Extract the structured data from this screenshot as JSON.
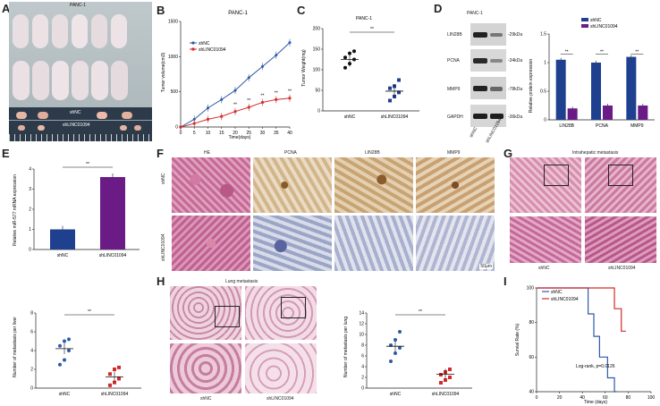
{
  "letters": {
    "A": "A",
    "B": "B",
    "C": "C",
    "D": "D",
    "E": "E",
    "F": "F",
    "G": "G",
    "H": "H",
    "I": "I"
  },
  "panelA": {
    "title": "PANC-1",
    "label_top": "shNC",
    "label_bottom": "shLINC01094"
  },
  "panelB": {
    "title": "PANC-1",
    "legend": [
      "shNC",
      "shLINC01094"
    ],
    "xlabel": "Time(days)",
    "ylabel": "Tumor volume(cm3)",
    "stars": "**"
  },
  "panelC": {
    "title": "PANC-1",
    "ylabel": "Tumor Weight(mg)",
    "groups": [
      "shNC",
      "shLINC01094"
    ],
    "stars": "**"
  },
  "panelD": {
    "title": "PANC-1",
    "rows": [
      "LIN28B",
      "PCNA",
      "MMP9",
      "GAPDH"
    ],
    "kda": [
      "-29kDa",
      "-34kDa",
      "-78kDa",
      "-36kDa"
    ],
    "lanes": [
      "shNC",
      "shLINC01094"
    ],
    "legend": [
      "shNC",
      "shLINC01094"
    ],
    "ylabel": "Relative protein expression",
    "stars": "**"
  },
  "panelE": {
    "ylabel": "Relative miR-577 mRNA expression",
    "groups": [
      "shNC",
      "shLINC01094"
    ],
    "stars": "**"
  },
  "panelEb": {
    "ylabel": "Number of metastasis per liver",
    "groups": [
      "shNC",
      "shLINC01094"
    ],
    "stars": "**"
  },
  "panelF": {
    "cols": [
      "HE",
      "PCNA",
      "LIN28B",
      "MMP9"
    ],
    "rows": [
      "shNC",
      "shLINC01094"
    ],
    "scale": "50μm"
  },
  "panelG": {
    "title": "Intrahepatic metastasis",
    "labels": [
      "shNC",
      "shLINC01094"
    ]
  },
  "panelH": {
    "title": "Lung metastasis",
    "labels": [
      "shNC",
      "shLINC01094"
    ],
    "ylabel": "Number of metastasis per lung",
    "groups": [
      "shNC",
      "shLINC01094"
    ],
    "stars": "**"
  },
  "panelI": {
    "legend": [
      "shNC",
      "shLINC01094"
    ],
    "ylabel": "Survial Rate (%)",
    "xlabel": "Time (days)",
    "stat": "Log-rank, p=0.0126"
  },
  "colors": {
    "blue": "#2e5aa8",
    "red": "#d42a2a",
    "navy": "#1f3f8f",
    "purple": "#6a1b86",
    "he": "#c2608e",
    "ihc": "#c9a477"
  },
  "chart_data": [
    {
      "type": "line",
      "title": "PANC-1",
      "xlabel": "Time(days)",
      "ylabel": "Tumor volume(cm3)",
      "x": [
        0,
        5,
        10,
        15,
        20,
        25,
        30,
        35,
        40
      ],
      "xlim": [
        0,
        40
      ],
      "ylim": [
        0,
        1500
      ],
      "yticks": [
        0,
        500,
        1000,
        1500
      ],
      "series": [
        {
          "name": "shNC",
          "values": [
            0,
            110,
            270,
            390,
            520,
            700,
            860,
            1020,
            1200
          ]
        },
        {
          "name": "shLINC01094",
          "values": [
            0,
            50,
            110,
            150,
            220,
            280,
            350,
            390,
            410
          ]
        }
      ]
    },
    {
      "type": "scatter",
      "title": "PANC-1",
      "ylabel": "Tumor Weight(mg)",
      "categories": [
        "shNC",
        "shLINC01094"
      ],
      "ylim": [
        0,
        200
      ],
      "yticks": [
        0,
        50,
        100,
        150,
        200
      ],
      "series": [
        {
          "name": "shNC",
          "values": [
            105,
            115,
            125,
            130,
            140,
            145
          ],
          "mean": 125
        },
        {
          "name": "shLINC01094",
          "values": [
            25,
            35,
            45,
            55,
            60,
            75
          ],
          "mean": 48
        }
      ]
    },
    {
      "type": "bar",
      "ylabel": "Relative protein expression",
      "categories": [
        "LIN28B",
        "PCNA",
        "MMP9"
      ],
      "ylim": [
        0,
        1.5
      ],
      "yticks": [
        0,
        0.5,
        1.0,
        1.5
      ],
      "series": [
        {
          "name": "shNC",
          "values": [
            1.05,
            1.0,
            1.1
          ]
        },
        {
          "name": "shLINC01094",
          "values": [
            0.2,
            0.25,
            0.25
          ]
        }
      ]
    },
    {
      "type": "bar",
      "ylabel": "Relative miR-577 mRNA expression",
      "categories": [
        "shNC",
        "shLINC01094"
      ],
      "ylim": [
        0,
        4
      ],
      "yticks": [
        0,
        1,
        2,
        3,
        4
      ],
      "series": [
        {
          "values": [
            1.0,
            3.6
          ]
        }
      ]
    },
    {
      "type": "scatter",
      "ylabel": "Number of metastasis per liver",
      "categories": [
        "shNC",
        "shLINC01094"
      ],
      "ylim": [
        0,
        8
      ],
      "yticks": [
        0,
        2,
        4,
        6,
        8
      ],
      "series": [
        {
          "name": "shNC",
          "values": [
            2.5,
            3,
            4,
            4.5,
            5,
            5.2
          ],
          "mean": 4.2
        },
        {
          "name": "shLINC01094",
          "values": [
            0.3,
            0.6,
            1,
            1.5,
            2,
            2.2
          ],
          "mean": 1.2
        }
      ]
    },
    {
      "type": "scatter",
      "ylabel": "Number of metastasis per lung",
      "categories": [
        "shNC",
        "shLINC01094"
      ],
      "ylim": [
        0,
        14
      ],
      "yticks": [
        0,
        2,
        4,
        6,
        8,
        10,
        12,
        14
      ],
      "series": [
        {
          "name": "shNC",
          "values": [
            5,
            6.5,
            7.5,
            8,
            9,
            10.5
          ],
          "mean": 7.8
        },
        {
          "name": "shLINC01094",
          "values": [
            1,
            1.5,
            2,
            2.5,
            3,
            3.5
          ],
          "mean": 2.6
        }
      ]
    },
    {
      "type": "line",
      "ylabel": "Survial Rate (%)",
      "xlabel": "Time (days)",
      "xlim": [
        0,
        100
      ],
      "ylim": [
        40,
        100
      ],
      "xticks": [
        0,
        20,
        40,
        60,
        80,
        100
      ],
      "yticks": [
        40,
        60,
        80,
        100
      ],
      "series": [
        {
          "name": "shNC",
          "x": [
            0,
            45,
            45,
            50,
            50,
            55,
            55,
            62,
            62,
            68,
            68,
            70
          ],
          "values": [
            100,
            100,
            85,
            85,
            72,
            72,
            60,
            60,
            48,
            48,
            40,
            40
          ]
        },
        {
          "name": "shLINC01094",
          "x": [
            0,
            68,
            68,
            74,
            74,
            78
          ],
          "values": [
            100,
            100,
            88,
            88,
            75,
            75
          ]
        }
      ]
    }
  ]
}
